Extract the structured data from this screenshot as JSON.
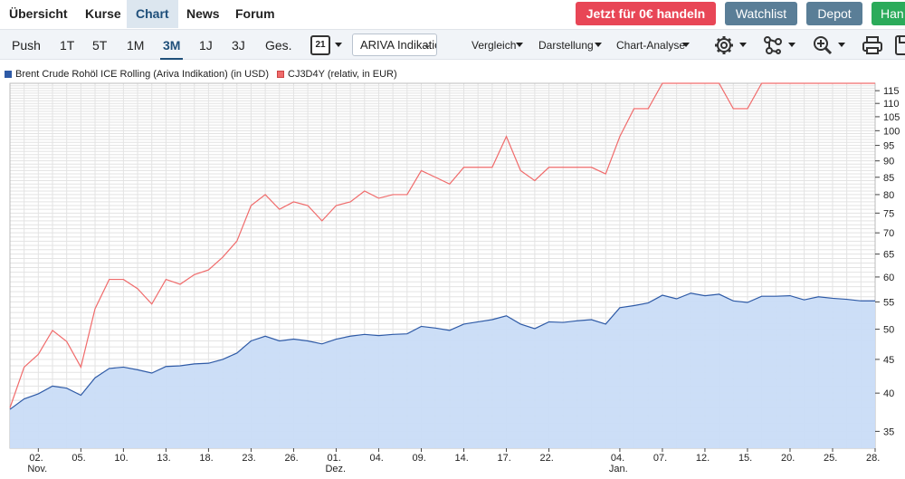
{
  "nav": {
    "tabs": [
      "Übersicht",
      "Kurse",
      "Chart",
      "News",
      "Forum"
    ],
    "active_tab": "Chart",
    "cta": "Jetzt für 0€ handeln",
    "watchlist": "Watchlist",
    "depot": "Depot",
    "handeln": "Han"
  },
  "toolbar": {
    "ranges": [
      "Push",
      "1T",
      "5T",
      "1M",
      "3M",
      "1J",
      "3J",
      "Ges."
    ],
    "active_range": "3M",
    "calendar_day": "21",
    "source_select": "ARIVA Indikation",
    "menus": [
      "Vergleich",
      "Darstellung",
      "Chart-Analyse"
    ],
    "icons": [
      "settings-icon",
      "network-icon",
      "zoom-icon",
      "print-icon",
      "save-icon"
    ]
  },
  "legend": {
    "series1": "Brent Crude Rohöl ICE Rolling (Ariva Indikation) (in USD)",
    "series2": "CJ3D4Y (relativ, in EUR)"
  },
  "colors": {
    "series1_line": "#2e5aa6",
    "series1_fill": "#c9dcf7",
    "series2_line": "#f06b6b",
    "grid": "#e3e3e3",
    "accent": "#1f4f7a",
    "cta": "#e84656"
  },
  "chart_data": {
    "type": "line",
    "ylim": [
      33,
      118
    ],
    "y_ticks": [
      35,
      40,
      45,
      50,
      55,
      60,
      65,
      70,
      75,
      80,
      85,
      90,
      95,
      100,
      105,
      110,
      115
    ],
    "x_ticks": [
      {
        "day": 2,
        "label": "02.",
        "sub": "Nov."
      },
      {
        "day": 5,
        "label": "05."
      },
      {
        "day": 8,
        "label": "10."
      },
      {
        "day": 11,
        "label": "13."
      },
      {
        "day": 14,
        "label": "18."
      },
      {
        "day": 17,
        "label": "23."
      },
      {
        "day": 20,
        "label": "26."
      },
      {
        "day": 23,
        "label": "01.",
        "sub": "Dez."
      },
      {
        "day": 26,
        "label": "04."
      },
      {
        "day": 29,
        "label": "09."
      },
      {
        "day": 32,
        "label": "14."
      },
      {
        "day": 35,
        "label": "17."
      },
      {
        "day": 38,
        "label": "22."
      },
      {
        "day": 43,
        "label": "04.",
        "sub": "Jan."
      },
      {
        "day": 46,
        "label": "07."
      },
      {
        "day": 49,
        "label": "12."
      },
      {
        "day": 52,
        "label": "15."
      },
      {
        "day": 55,
        "label": "20."
      },
      {
        "day": 58,
        "label": "25."
      },
      {
        "day": 61,
        "label": "28."
      }
    ],
    "series": [
      {
        "name": "Brent Crude Rohöl ICE Rolling (Ariva Indikation) (in USD)",
        "values": [
          37.8,
          39.2,
          39.9,
          41.0,
          40.7,
          39.7,
          42.2,
          43.6,
          43.8,
          43.4,
          42.9,
          43.9,
          44.0,
          44.3,
          44.4,
          45.0,
          46.0,
          48.0,
          48.8,
          48.0,
          48.3,
          48.0,
          47.5,
          48.3,
          48.8,
          49.1,
          48.9,
          49.1,
          49.2,
          50.5,
          50.2,
          49.8,
          50.9,
          51.3,
          51.7,
          52.4,
          50.9,
          50.1,
          51.3,
          51.2,
          51.5,
          51.7,
          50.9,
          53.9,
          54.3,
          54.8,
          56.3,
          55.6,
          56.7,
          56.2,
          56.5,
          55.2,
          54.9,
          56.1,
          56.1,
          56.2,
          55.4,
          56.0,
          55.7,
          55.5,
          55.2,
          55.2
        ]
      },
      {
        "name": "CJ3D4Y (relativ, in EUR)",
        "values": [
          38.0,
          43.8,
          45.8,
          49.8,
          47.9,
          43.8,
          53.7,
          59.5,
          59.5,
          57.6,
          54.6,
          59.5,
          58.5,
          60.5,
          61.5,
          64.3,
          68.0,
          77.0,
          80.0,
          76.0,
          78.0,
          77.0,
          73.0,
          77.0,
          78.0,
          81.0,
          79.0,
          80.0,
          80.0,
          87.0,
          85.0,
          83.0,
          88.0,
          88.0,
          88.0,
          98.0,
          87.0,
          84.0,
          88.0,
          88.0,
          88.0,
          88.0,
          86.0,
          98.0,
          108.0,
          108.0,
          118.0,
          118.0,
          118.0,
          118.0,
          118.0,
          108.0,
          108.0,
          118.0,
          118.0,
          118.0,
          118.0,
          118.0,
          118.0,
          118.0,
          118.0,
          118.0
        ]
      }
    ]
  }
}
